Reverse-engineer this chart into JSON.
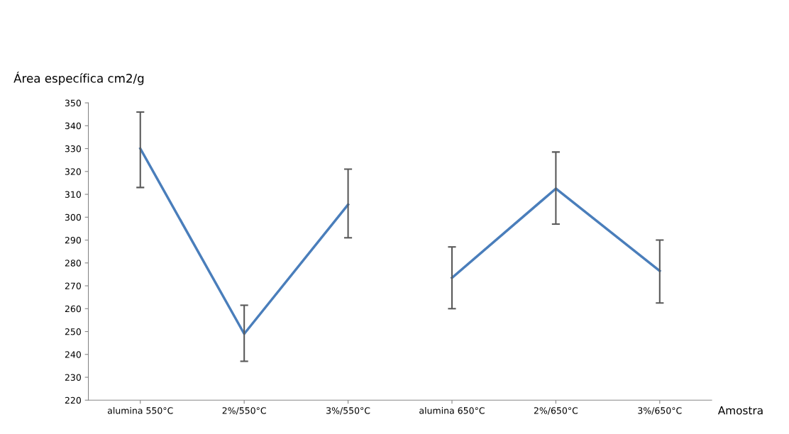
{
  "chart_data": {
    "type": "line",
    "xlabel": "Amostra",
    "ylabel": "Área específica cm2/g",
    "categories": [
      "alumina 550°C",
      "2%/550°C",
      "3%/550°C",
      "alumina 650°C",
      "2%/650°C",
      "3%/650°C"
    ],
    "series": [
      {
        "color": "#4a7ebb",
        "values": [
          330,
          249,
          305.5,
          null,
          null,
          null
        ],
        "errors": [
          [
            313,
            346
          ],
          [
            237,
            261.5
          ],
          [
            291,
            321
          ],
          null,
          null,
          null
        ]
      },
      {
        "color": "#4a7ebb",
        "values": [
          null,
          null,
          null,
          273.5,
          312.5,
          276.5
        ],
        "errors": [
          null,
          null,
          null,
          [
            260,
            287
          ],
          [
            297,
            328.5
          ],
          [
            262.5,
            290
          ]
        ]
      }
    ],
    "ylim": [
      220,
      350
    ],
    "yticks": [
      220,
      230,
      240,
      250,
      260,
      270,
      280,
      290,
      300,
      310,
      320,
      330,
      340,
      350
    ],
    "grid": false,
    "legend": false,
    "marker": "none",
    "line_style": "solid"
  }
}
